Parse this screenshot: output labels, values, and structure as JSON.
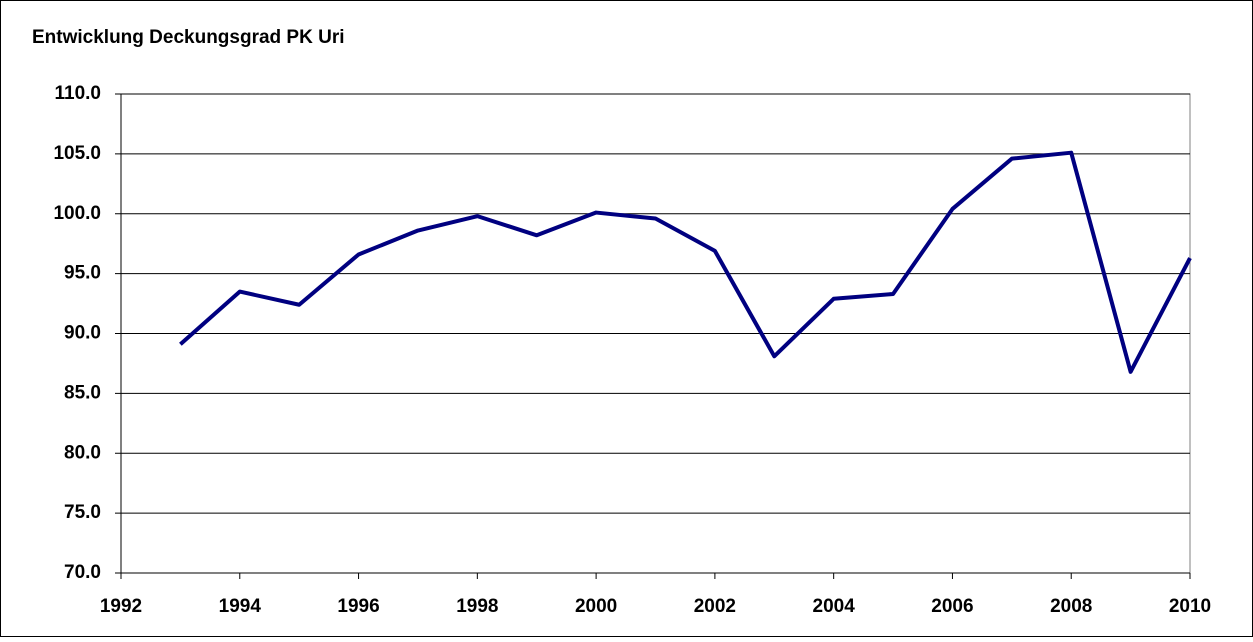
{
  "chart_data": {
    "type": "line",
    "title": "Entwicklung Deckungsgrad PK Uri",
    "x": [
      1993,
      1994,
      1995,
      1996,
      1997,
      1998,
      1999,
      2000,
      2001,
      2002,
      2003,
      2004,
      2005,
      2006,
      2007,
      2008,
      2009,
      2010
    ],
    "series": [
      {
        "name": "Deckungsgrad",
        "color": "#000080",
        "values": [
          89.1,
          93.5,
          92.4,
          96.6,
          98.6,
          99.8,
          98.2,
          100.1,
          99.6,
          96.9,
          88.1,
          92.9,
          93.3,
          100.4,
          104.6,
          105.1,
          86.8,
          96.3
        ]
      }
    ],
    "xlim": [
      1992,
      2010
    ],
    "xticks": [
      1992,
      1994,
      1996,
      1998,
      2000,
      2002,
      2004,
      2006,
      2008,
      2010
    ],
    "ylim": [
      70,
      110
    ],
    "yticks": [
      {
        "value": 70,
        "label": "70.0"
      },
      {
        "value": 75,
        "label": "75.0"
      },
      {
        "value": 80,
        "label": "80.0"
      },
      {
        "value": 85,
        "label": "85.0"
      },
      {
        "value": 90,
        "label": "90.0"
      },
      {
        "value": 95,
        "label": "95.0"
      },
      {
        "value": 100,
        "label": "100.0"
      },
      {
        "value": 105,
        "label": "105.0"
      },
      {
        "value": 110,
        "label": "110.0"
      }
    ],
    "grid": true
  }
}
